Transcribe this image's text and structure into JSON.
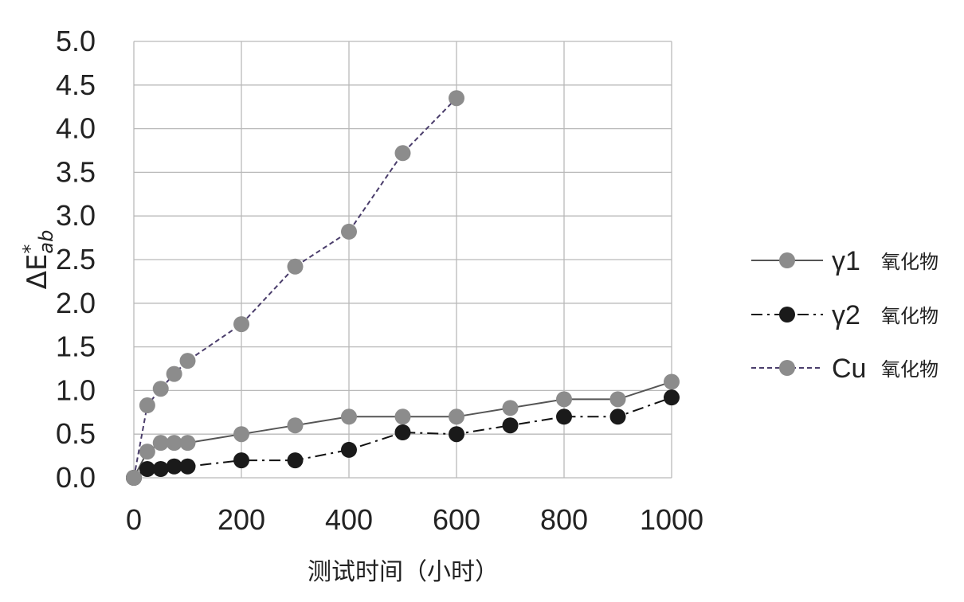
{
  "chart_data": {
    "type": "line",
    "xlabel": "测试时间（小时）",
    "ylabel": {
      "prefix": "ΔE",
      "superscript": "*",
      "subscript": "ab"
    },
    "xlim": [
      0,
      1000
    ],
    "ylim": [
      0,
      5
    ],
    "xticks": [
      "0",
      "200",
      "400",
      "600",
      "800",
      "1000"
    ],
    "yticks": [
      "0.0",
      "0.5",
      "1.0",
      "1.5",
      "2.0",
      "2.5",
      "3.0",
      "3.5",
      "4.0",
      "4.5",
      "5.0"
    ],
    "grid": true,
    "legend_position": "right",
    "series": [
      {
        "name": "γ1",
        "suffix": "氧化物",
        "line_style": "solid",
        "line_color": "#555555",
        "marker_color": "#8c8c8c",
        "x": [
          0,
          25,
          50,
          75,
          100,
          200,
          300,
          400,
          500,
          600,
          700,
          800,
          900,
          1000
        ],
        "y": [
          0.0,
          0.3,
          0.4,
          0.4,
          0.4,
          0.5,
          0.6,
          0.7,
          0.7,
          0.7,
          0.8,
          0.9,
          0.9,
          1.1
        ]
      },
      {
        "name": "γ2",
        "suffix": "氧化物",
        "line_style": "dash-dot",
        "line_color": "#111111",
        "marker_color": "#1a1a1a",
        "x": [
          0,
          25,
          50,
          75,
          100,
          200,
          300,
          400,
          500,
          600,
          700,
          800,
          900,
          1000
        ],
        "y": [
          0.0,
          0.1,
          0.1,
          0.13,
          0.13,
          0.2,
          0.2,
          0.32,
          0.52,
          0.5,
          0.6,
          0.7,
          0.7,
          0.92
        ]
      },
      {
        "name": "Cu",
        "suffix": "氧化物",
        "line_style": "dashed",
        "line_color": "#4a3d6b",
        "marker_color": "#8c8c8c",
        "x": [
          0,
          25,
          50,
          75,
          100,
          200,
          300,
          400,
          500,
          600
        ],
        "y": [
          0.0,
          0.83,
          1.02,
          1.19,
          1.34,
          1.76,
          2.42,
          2.82,
          3.72,
          4.35
        ]
      }
    ]
  }
}
